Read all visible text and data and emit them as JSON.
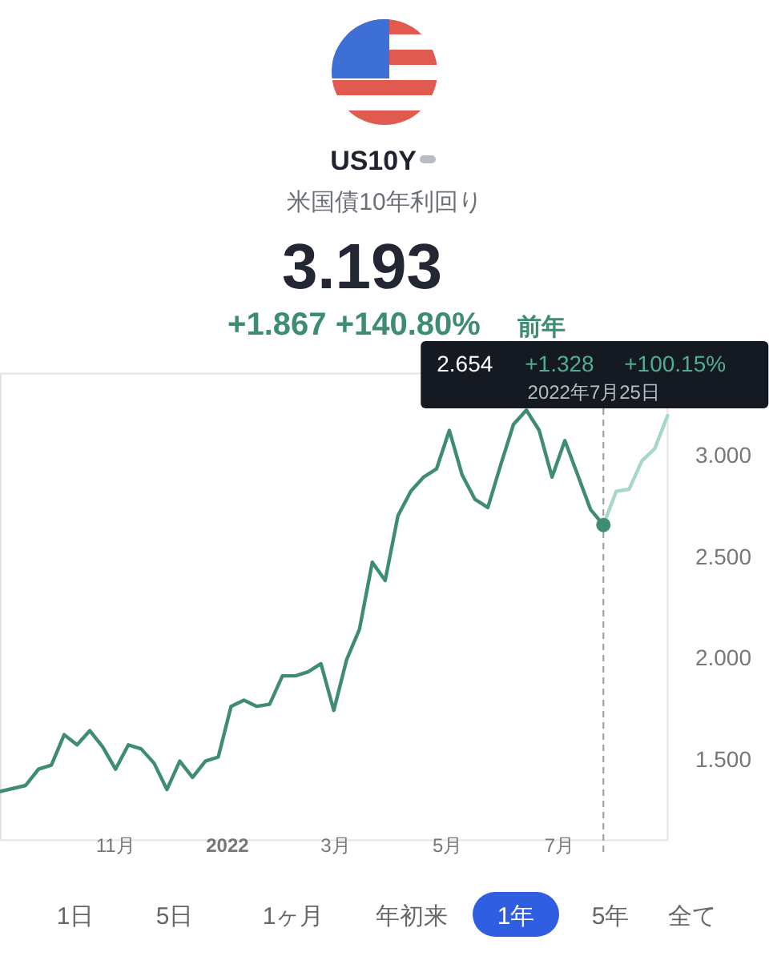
{
  "chart_data": {
    "type": "line",
    "title": "US10Y",
    "subtitle": "米国債10年利回り",
    "xticks": [
      {
        "value": "2021-11-01",
        "label": "11月"
      },
      {
        "value": "2022-01-01",
        "label": "2022"
      },
      {
        "value": "2022-03-01",
        "label": "3月"
      },
      {
        "value": "2022-05-01",
        "label": "5月"
      },
      {
        "value": "2022-07-01",
        "label": "7月"
      }
    ],
    "yticks": [
      {
        "value": 1.5,
        "label": "1.500"
      },
      {
        "value": 2,
        "label": "2.000"
      },
      {
        "value": 2.5,
        "label": "2.500"
      },
      {
        "value": 3,
        "label": "3.000"
      }
    ],
    "xlim": [
      "2021-08-30",
      "2022-08-29"
    ],
    "ylim": [
      1.1,
      3.4
    ],
    "grid": false,
    "series": [
      {
        "color": "#3d8c73",
        "x": [
          "2021-08-30",
          "2021-09-13",
          "2021-09-20",
          "2021-09-27",
          "2021-10-04",
          "2021-10-11",
          "2021-10-18",
          "2021-10-25",
          "2021-11-01",
          "2021-11-08",
          "2021-11-15",
          "2021-11-22",
          "2021-11-29",
          "2021-12-06",
          "2021-12-13",
          "2021-12-20",
          "2021-12-27",
          "2022-01-03",
          "2022-01-10",
          "2022-01-17",
          "2022-01-24",
          "2022-01-31",
          "2022-02-07",
          "2022-02-14",
          "2022-02-21",
          "2022-02-28",
          "2022-03-07",
          "2022-03-14",
          "2022-03-21",
          "2022-03-28",
          "2022-04-04",
          "2022-04-11",
          "2022-04-18",
          "2022-04-25",
          "2022-05-02",
          "2022-05-09",
          "2022-05-16",
          "2022-05-23",
          "2022-05-30",
          "2022-06-06",
          "2022-06-13",
          "2022-06-20",
          "2022-06-27",
          "2022-07-04",
          "2022-07-11",
          "2022-07-18",
          "2022-07-25"
        ],
        "values": [
          1.34,
          1.37,
          1.45,
          1.47,
          1.62,
          1.57,
          1.64,
          1.56,
          1.45,
          1.57,
          1.55,
          1.48,
          1.35,
          1.49,
          1.41,
          1.49,
          1.51,
          1.76,
          1.79,
          1.76,
          1.77,
          1.91,
          1.91,
          1.93,
          1.97,
          1.74,
          1.99,
          2.14,
          2.47,
          2.38,
          2.7,
          2.82,
          2.89,
          2.93,
          3.12,
          2.9,
          2.78,
          2.74,
          2.95,
          3.15,
          3.22,
          3.12,
          2.89,
          3.07,
          2.9,
          2.73,
          2.654
        ]
      },
      {
        "color": "#a6d8c5",
        "x": [
          "2022-07-25",
          "2022-08-01",
          "2022-08-08",
          "2022-08-15",
          "2022-08-22",
          "2022-08-29"
        ],
        "values": [
          2.654,
          2.82,
          2.83,
          2.97,
          3.03,
          3.193
        ]
      },
      {
        "type": "scatter",
        "marker": "circle",
        "color": "#3d8c73",
        "x": [
          "2022-07-25"
        ],
        "values": [
          2.654
        ]
      }
    ],
    "ref_lines": [
      {
        "axis": "x",
        "value": "2022-07-25",
        "color": "#9a9a9a",
        "line_style": "dashed"
      }
    ],
    "annotations": [
      "3.193",
      "+1.867 +140.80%",
      "前年",
      "2.654",
      "+1.328",
      "+100.15%",
      "2022年7月25日",
      "1日",
      "5日",
      "1ヶ月",
      "年初来",
      "1年",
      "5年",
      "全て"
    ]
  }
}
